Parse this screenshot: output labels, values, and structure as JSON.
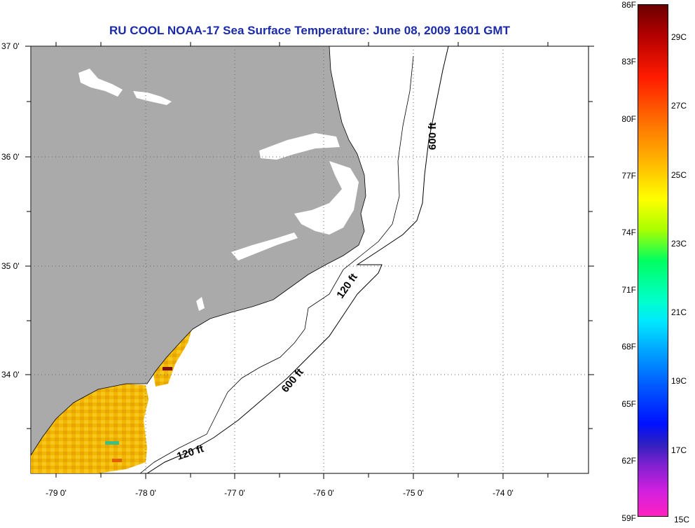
{
  "title": "RU COOL  NOAA-17  Sea Surface Temperature:  June 08, 2009 1601 GMT",
  "lat_labels": [
    "37 0'",
    "36 0'",
    "35 0'",
    "34 0'"
  ],
  "lon_labels": [
    "-79 0'",
    "-78 0'",
    "-77 0'",
    "-76 0'",
    "-75 0'",
    "-74 0'"
  ],
  "contours": {
    "c600_north": "600 ft",
    "c120_mid": "120 ft",
    "c600_south": "600 ft",
    "c120_south": "120 ft"
  },
  "colorbar": {
    "fahrenheit": [
      "86F",
      "83F",
      "80F",
      "77F",
      "74F",
      "71F",
      "68F",
      "65F",
      "62F",
      "59F"
    ],
    "celsius": [
      "29C",
      "27C",
      "25C",
      "23C",
      "21C",
      "19C",
      "17C",
      "15C"
    ]
  },
  "colors": {
    "land": "#aaaaaa",
    "title": "#1a2aa8",
    "sst_warm": "#f0b000"
  }
}
